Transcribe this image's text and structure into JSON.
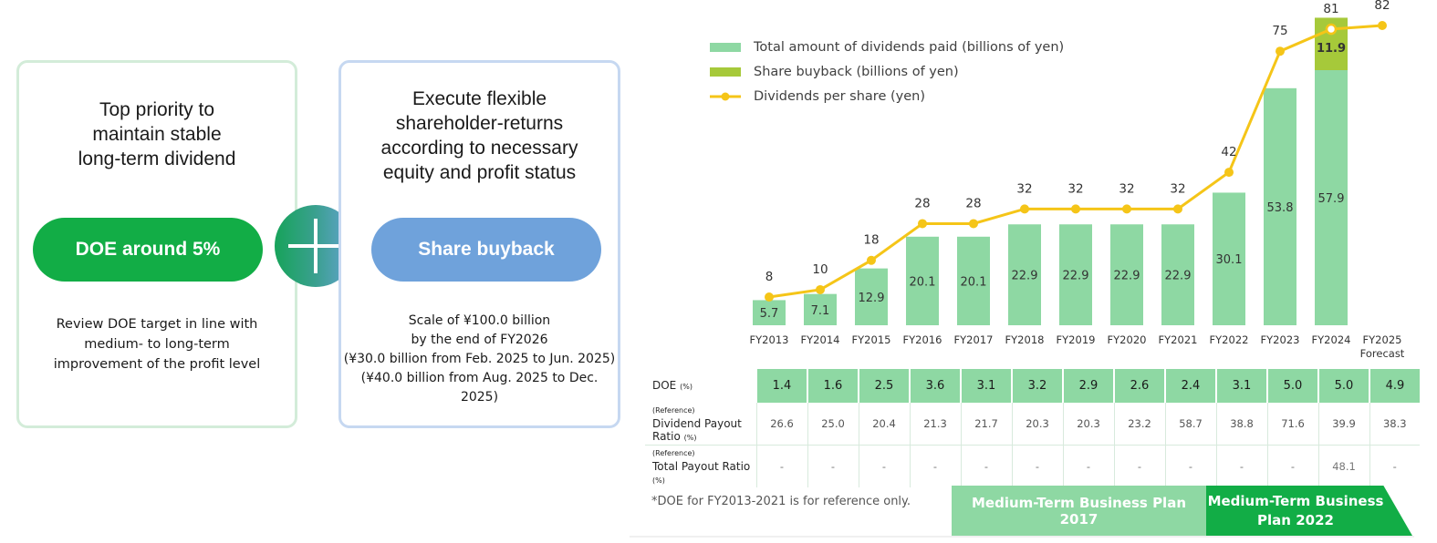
{
  "left_card": {
    "title": "Top priority to maintain stable long-term dividend",
    "pill": "DOE around 5%",
    "note": "Review DOE target in line with medium- to long-term improvement of the profit level"
  },
  "right_card": {
    "title": "Execute flexible shareholder-returns according to necessary equity and profit status",
    "pill": "Share buyback",
    "note_lines": [
      "Scale of ¥100.0 billion",
      "by the end of FY2026",
      "(¥30.0 billion from Feb. 2025 to Jun. 2025)",
      "(¥40.0 billion from Aug. 2025 to Dec. 2025)"
    ]
  },
  "plus_icon": "plus-icon",
  "colors": {
    "dividends_bar": "#8ed8a3",
    "buyback_bar": "#a6c93a",
    "dps_line": "#f5c518",
    "doe_green": "#12ad46",
    "share_blue": "#6fa2db"
  },
  "chart_data": {
    "type": "bar",
    "categories": [
      "FY2013",
      "FY2014",
      "FY2015",
      "FY2016",
      "FY2017",
      "FY2018",
      "FY2019",
      "FY2020",
      "FY2021",
      "FY2022",
      "FY2023",
      "FY2024",
      "FY2025"
    ],
    "category_sublabels": [
      "",
      "",
      "",
      "",
      "",
      "",
      "",
      "",
      "",
      "",
      "",
      "",
      "Forecast"
    ],
    "series": [
      {
        "name": "Total amount of dividends paid (billions of yen)",
        "kind": "bar",
        "values": [
          5.7,
          7.1,
          12.9,
          20.1,
          20.1,
          22.9,
          22.9,
          22.9,
          22.9,
          30.1,
          53.8,
          57.9,
          null
        ]
      },
      {
        "name": "Share buyback (billions of yen)",
        "kind": "bar-stacked",
        "values": [
          null,
          null,
          null,
          null,
          null,
          null,
          null,
          null,
          null,
          null,
          null,
          11.9,
          null
        ]
      },
      {
        "name": "Dividends per share (yen)",
        "kind": "line",
        "values": [
          8,
          10,
          18,
          28,
          28,
          32,
          32,
          32,
          32,
          42,
          75,
          81,
          82
        ]
      }
    ],
    "legend_position": "top-left",
    "table": {
      "doe_label": "DOE",
      "doe_unit": "(%)",
      "doe": [
        "1.4",
        "1.6",
        "2.5",
        "3.6",
        "3.1",
        "3.2",
        "2.9",
        "2.6",
        "2.4",
        "3.1",
        "5.0",
        "5.0",
        "4.9"
      ],
      "ref_tag": "(Reference)",
      "payout_label": "Dividend Payout Ratio",
      "payout_unit": "(%)",
      "payout": [
        "26.6",
        "25.0",
        "20.4",
        "21.3",
        "21.7",
        "20.3",
        "20.3",
        "23.2",
        "58.7",
        "38.8",
        "71.6",
        "39.9",
        "38.3"
      ],
      "total_payout_label": "Total Payout Ratio",
      "total_payout_unit": "(%)",
      "total_payout": [
        "-",
        "-",
        "-",
        "-",
        "-",
        "-",
        "-",
        "-",
        "-",
        "-",
        "-",
        "48.1",
        "-"
      ]
    },
    "footnote": "*DOE for FY2013-2021 is for reference only.",
    "plans": [
      {
        "label": "Medium-Term Business Plan 2017"
      },
      {
        "label": "Medium-Term Business Plan 2022"
      }
    ]
  }
}
